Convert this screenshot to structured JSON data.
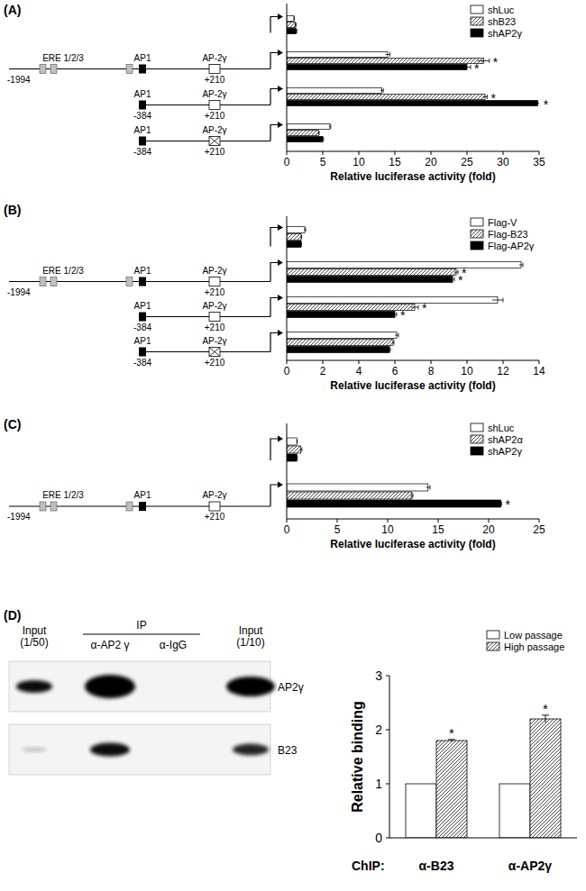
{
  "chart_data": [
    {
      "panel": "(A)",
      "type": "bar",
      "orientation": "horizontal",
      "grid": false,
      "legend": "upper right",
      "categories": [
        null,
        null,
        null,
        null
      ],
      "constructs": [
        null,
        {
          "start": "-1994",
          "end": "+210",
          "ere": "ERE 1/2/3",
          "ap1": "AP1",
          "ap2": "AP-2γ",
          "mutant": false
        },
        {
          "start": "-384",
          "end": "+210",
          "ap1": "AP1",
          "ap2": "AP-2γ",
          "mutant": false
        },
        {
          "start": "-384",
          "end": "+210",
          "ap1": "AP1",
          "ap2": "AP-2γ",
          "mutant": true
        }
      ],
      "xlabel": "Relative luciferase activity (fold)",
      "xlim": [
        0,
        35
      ],
      "xticks": [
        0,
        5,
        10,
        15,
        20,
        25,
        30,
        35
      ],
      "series": [
        {
          "name": "shLuc",
          "color": "#ffffff",
          "values": [
            1,
            14,
            13.2,
            6
          ],
          "errors": [
            0.05,
            0.3,
            0.2,
            0.1
          ]
        },
        {
          "name": "shB23",
          "color": "#333333",
          "line_style": "hatch",
          "values": [
            1.2,
            27.3,
            27.5,
            4.4
          ],
          "errors": [
            0.1,
            0.8,
            0.3,
            0.1
          ],
          "stars": [
            null,
            "*",
            "*",
            null
          ]
        },
        {
          "name": "shAP2γ",
          "color": "#000000",
          "values": [
            1.3,
            25,
            34.8,
            5
          ],
          "errors": [
            0.1,
            0.5,
            0.3,
            0.1
          ],
          "stars": [
            null,
            "*",
            "*",
            null
          ]
        }
      ]
    },
    {
      "panel": "(B)",
      "type": "bar",
      "orientation": "horizontal",
      "grid": false,
      "legend": "upper right",
      "categories": [
        null,
        null,
        null,
        null
      ],
      "constructs": [
        null,
        {
          "start": "-1994",
          "end": "+210",
          "ere": "ERE 1/2/3",
          "ap1": "AP1",
          "ap2": "AP-2γ",
          "mutant": false
        },
        {
          "start": "-384",
          "end": "+210",
          "ap1": "AP1",
          "ap2": "AP-2γ",
          "mutant": false
        },
        {
          "start": "-384",
          "end": "+210",
          "ap1": "AP1",
          "ap2": "AP-2γ",
          "mutant": true
        }
      ],
      "xlabel": "Relative luciferase activity (fold)",
      "xlim": [
        0,
        14
      ],
      "xticks": [
        0,
        2,
        4,
        6,
        8,
        10,
        12,
        14
      ],
      "series": [
        {
          "name": "Flag-V",
          "color": "#ffffff",
          "values": [
            1,
            13,
            11.7,
            6.1
          ],
          "errors": [
            0.05,
            0.1,
            0.3,
            0.1
          ]
        },
        {
          "name": "Flag-B23",
          "color": "#333333",
          "line_style": "hatch",
          "values": [
            0.8,
            9.4,
            7.1,
            5.9
          ],
          "errors": [
            0.02,
            0.1,
            0.2,
            0.05
          ],
          "stars": [
            null,
            "*",
            "*",
            null
          ]
        },
        {
          "name": "Flag-AP2γ",
          "color": "#000000",
          "values": [
            0.8,
            9.2,
            6.0,
            5.7
          ],
          "errors": [
            0.02,
            0.1,
            0.1,
            0.05
          ],
          "stars": [
            null,
            "*",
            "*",
            null
          ]
        }
      ]
    },
    {
      "panel": "(C)",
      "type": "bar",
      "orientation": "horizontal",
      "grid": false,
      "legend": "upper right",
      "categories": [
        null,
        null
      ],
      "constructs": [
        null,
        {
          "start": "-1994",
          "end": "+210",
          "ere": "ERE 1/2/3",
          "ap1": "AP1",
          "ap2": "AP-2γ",
          "mutant": false
        }
      ],
      "xlabel": "Relative luciferase activity (fold)",
      "xlim": [
        0,
        25
      ],
      "xticks": [
        0,
        5,
        10,
        15,
        20,
        25
      ],
      "series": [
        {
          "name": "shLuc",
          "color": "#ffffff",
          "values": [
            1,
            14
          ],
          "errors": [
            0.05,
            0.2
          ]
        },
        {
          "name": "shAP2α",
          "color": "#333333",
          "line_style": "hatch",
          "values": [
            1.4,
            12.4
          ],
          "errors": [
            0.1,
            0.1
          ]
        },
        {
          "name": "shAP2γ",
          "color": "#000000",
          "values": [
            1.0,
            21.2
          ],
          "errors": [
            0.05,
            0.1
          ],
          "stars": [
            null,
            "*"
          ]
        }
      ]
    },
    {
      "panel": "(D)",
      "type": "bar",
      "grid": false,
      "legend": "upper right",
      "categories": [
        "α-B23",
        "α-AP2γ"
      ],
      "xlabel": "ChIP:",
      "ylabel": "Relative binding",
      "ylim": [
        0,
        3
      ],
      "yticks": [
        0,
        1,
        2,
        3
      ],
      "series": [
        {
          "name": "Low passage",
          "color": "#ffffff",
          "values": [
            1,
            1
          ]
        },
        {
          "name": "High passage",
          "color": "#333333",
          "line_style": "hatch",
          "values": [
            1.8,
            2.2
          ],
          "errors": [
            0.02,
            0.07
          ],
          "stars": [
            "*",
            "*"
          ]
        }
      ],
      "blot": {
        "group_label": "IP",
        "lanes": [
          [
            "Input",
            "(1/50)"
          ],
          [
            "α-AP2 γ"
          ],
          [
            "α-IgG"
          ],
          [
            "Input",
            "(1/10)"
          ]
        ],
        "rows": [
          "AP2γ",
          "B23"
        ]
      }
    }
  ]
}
